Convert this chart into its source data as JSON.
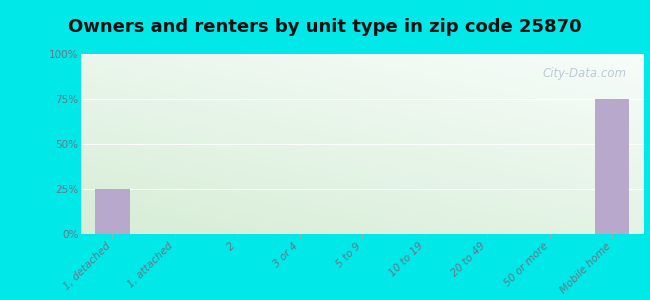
{
  "title": "Owners and renters by unit type in zip code 25870",
  "categories": [
    "1, detached",
    "1, attached",
    "2",
    "3 or 4",
    "5 to 9",
    "10 to 19",
    "20 to 49",
    "50 or more",
    "Mobile home"
  ],
  "values": [
    25,
    0,
    0,
    0,
    0,
    0,
    0,
    0,
    75
  ],
  "bar_color": "#b8a8cc",
  "background_outer": "#00e8e8",
  "ylim": [
    0,
    100
  ],
  "yticks": [
    0,
    25,
    50,
    75,
    100
  ],
  "ytick_labels": [
    "0%",
    "25%",
    "50%",
    "75%",
    "100%"
  ],
  "title_fontsize": 13,
  "tick_label_fontsize": 7.5,
  "watermark": "City-Data.com"
}
